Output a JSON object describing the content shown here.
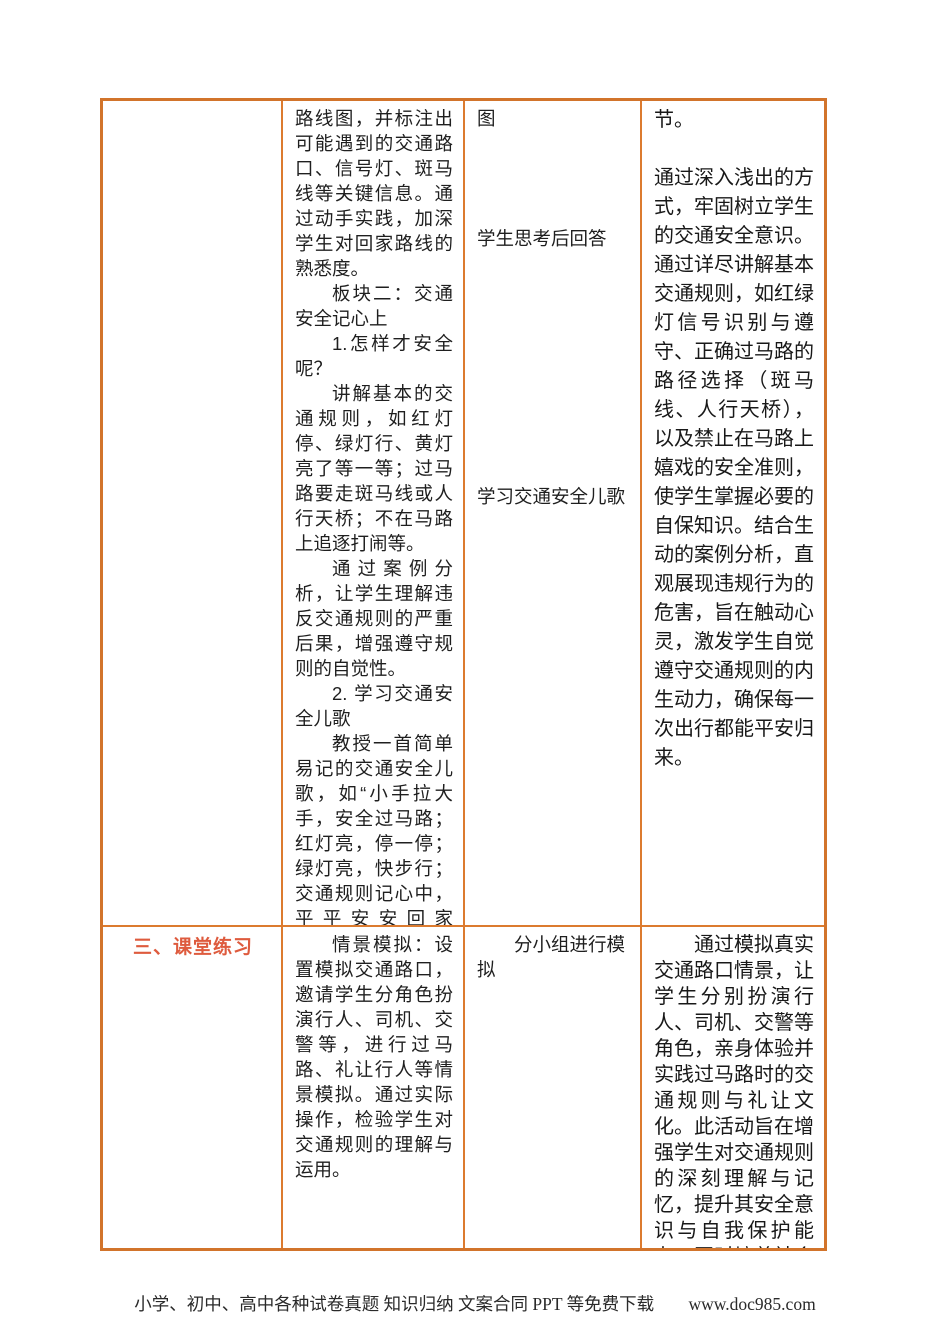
{
  "accent": {
    "table_border_color": "#d2742b",
    "grid_line_color": "#dc7b2f",
    "stage_heading_color": "#de5b3e"
  },
  "table": {
    "row1": {
      "stage": "",
      "content": {
        "p1": "路线图，并标注出可能遇到的交通路口、信号灯、斑马线等关键信息。通过动手实践，加深学生对回家路线的熟悉度。",
        "p2": "板块二：交通安全记心上",
        "p3": "1.怎样才安全呢？",
        "p4": "讲解基本的交通规则，如红灯停、绿灯行、黄灯亮了等一等；过马路要走斑马线或人行天桥；不在马路上追逐打闹等。",
        "p5": "通过案例分析，让学生理解违反交通规则的严重后果，增强遵守规则的自觉性。",
        "p6": "2. 学习交通安全儿歌",
        "p7": "教授一首简单易记的交通安全儿歌，如“小手拉大手，安全过马路；红灯亮，停一停；绿灯亮，快步行；交通规则记心中，平平安安回家中。”通过儿歌的传唱，让学生在轻松愉快的氛围中巩固交通安全知识。"
      },
      "activity": {
        "a1": "图",
        "a2": "学生思考后回答",
        "a3": "学习交通安全儿歌"
      },
      "intent": {
        "p1": "节。",
        "p2": "通过深入浅出的方式，牢固树立学生的交通安全意识。通过详尽讲解基本交通规则，如红绿灯信号识别与遵守、正确过马路的路径选择（斑马线、人行天桥），以及禁止在马路上嬉戏的安全准则，使学生掌握必要的自保知识。结合生动的案例分析，直观展现违规行为的危害，旨在触动心灵，激发学生自觉遵守交通规则的内生动力，确保每一次出行都能平安归来。"
      }
    },
    "row2": {
      "stage": "三、课堂练习",
      "content": {
        "p1": "情景模拟：设置模拟交通路口，邀请学生分角色扮演行人、司机、交警等，进行过马路、礼让行人等情景模拟。通过实际操作，检验学生对交通规则的理解与运用。"
      },
      "activity": {
        "a1": "分小组进行模拟"
      },
      "intent": {
        "p1": "通过模拟真实交通路口情景，让学生分别扮演行人、司机、交警等角色，亲身体验并实践过马路时的交通规则与礼让文化。此活动旨在增强学生对交通规则的深刻理解与记忆，提升其安全意识与自我保护能力，同时培养社会责任感，促进社会和谐交通环境的构"
      }
    }
  },
  "footer": {
    "text": "小学、初中、高中各种试卷真题  知识归纳  文案合同  PPT 等免费下载",
    "site": "www.doc985.com"
  }
}
